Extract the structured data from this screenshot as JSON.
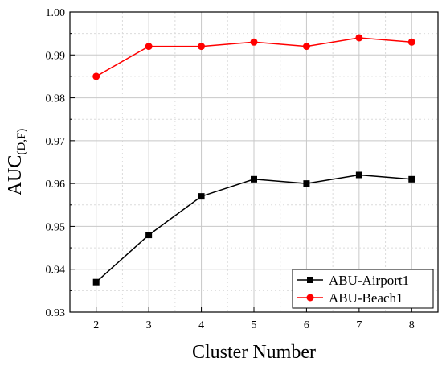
{
  "chart_data": {
    "type": "line",
    "xlabel": "Cluster Number",
    "ylabel_main": "AUC",
    "ylabel_sub": "(D,F)",
    "x": [
      2,
      3,
      4,
      5,
      6,
      7,
      8
    ],
    "xlim": [
      1.5,
      8.5
    ],
    "ylim": [
      0.93,
      1.0
    ],
    "x_ticks": [
      "2",
      "3",
      "4",
      "5",
      "6",
      "7",
      "8"
    ],
    "y_ticks": [
      "0.93",
      "0.94",
      "0.95",
      "0.96",
      "0.97",
      "0.98",
      "0.99",
      "1.00"
    ],
    "grid": true,
    "legend_position": "bottom-right",
    "series": [
      {
        "name": "ABU-Airport1",
        "color": "#000000",
        "marker": "square",
        "values": [
          0.937,
          0.948,
          0.957,
          0.961,
          0.96,
          0.962,
          0.961
        ]
      },
      {
        "name": "ABU-Beach1",
        "color": "#ff0000",
        "marker": "circle",
        "values": [
          0.985,
          0.992,
          0.992,
          0.993,
          0.992,
          0.994,
          0.993
        ]
      }
    ]
  }
}
